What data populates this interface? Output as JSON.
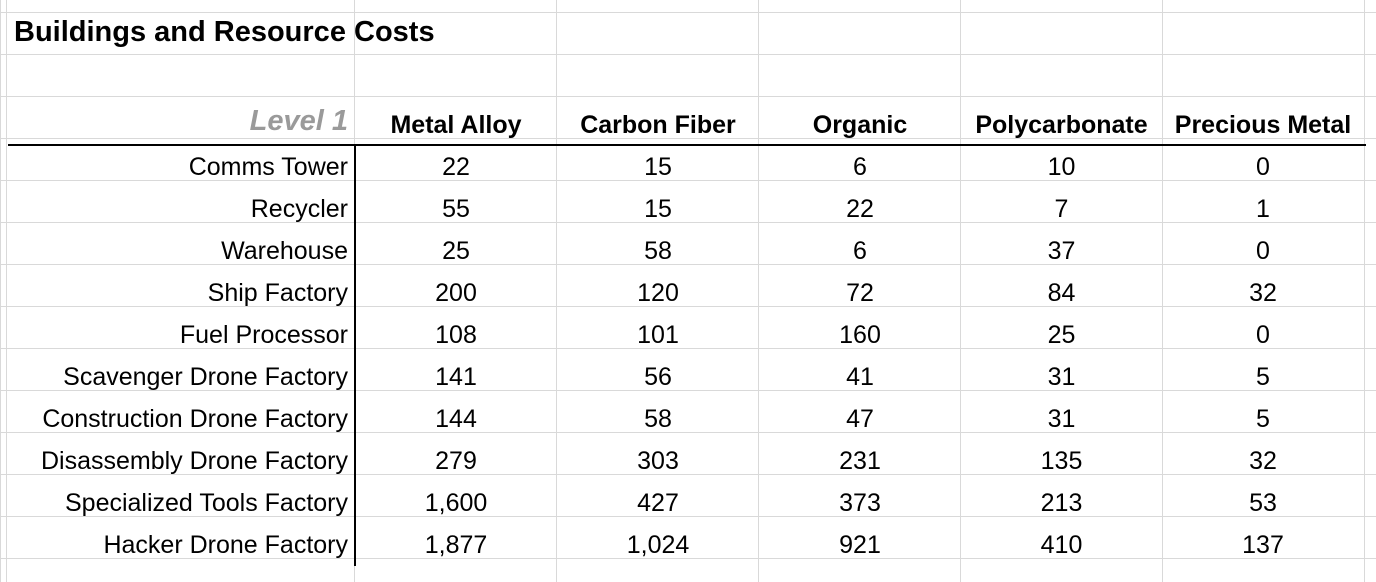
{
  "title": "Buildings and Resource Costs",
  "level_label": "Level 1",
  "columns": [
    "Metal Alloy",
    "Carbon Fiber",
    "Organic",
    "Polycarbonate",
    "Precious Metal"
  ],
  "rows": [
    {
      "name": "Comms Tower",
      "values": [
        "22",
        "15",
        "6",
        "10",
        "0"
      ]
    },
    {
      "name": "Recycler",
      "values": [
        "55",
        "15",
        "22",
        "7",
        "1"
      ]
    },
    {
      "name": "Warehouse",
      "values": [
        "25",
        "58",
        "6",
        "37",
        "0"
      ]
    },
    {
      "name": "Ship Factory",
      "values": [
        "200",
        "120",
        "72",
        "84",
        "32"
      ]
    },
    {
      "name": "Fuel Processor",
      "values": [
        "108",
        "101",
        "160",
        "25",
        "0"
      ]
    },
    {
      "name": "Scavenger Drone Factory",
      "values": [
        "141",
        "56",
        "41",
        "31",
        "5"
      ]
    },
    {
      "name": "Construction Drone Factory",
      "values": [
        "144",
        "58",
        "47",
        "31",
        "5"
      ]
    },
    {
      "name": "Disassembly Drone Factory",
      "values": [
        "279",
        "303",
        "231",
        "135",
        "32"
      ]
    },
    {
      "name": "Specialized Tools Factory",
      "values": [
        "1,600",
        "427",
        "373",
        "213",
        "53"
      ]
    },
    {
      "name": "Hacker Drone Factory",
      "values": [
        "1,877",
        "1,024",
        "921",
        "410",
        "137"
      ]
    }
  ],
  "colors": {
    "gridline": "#d9d9d9",
    "level_label": "#9a9a9a",
    "rule": "#000000"
  }
}
